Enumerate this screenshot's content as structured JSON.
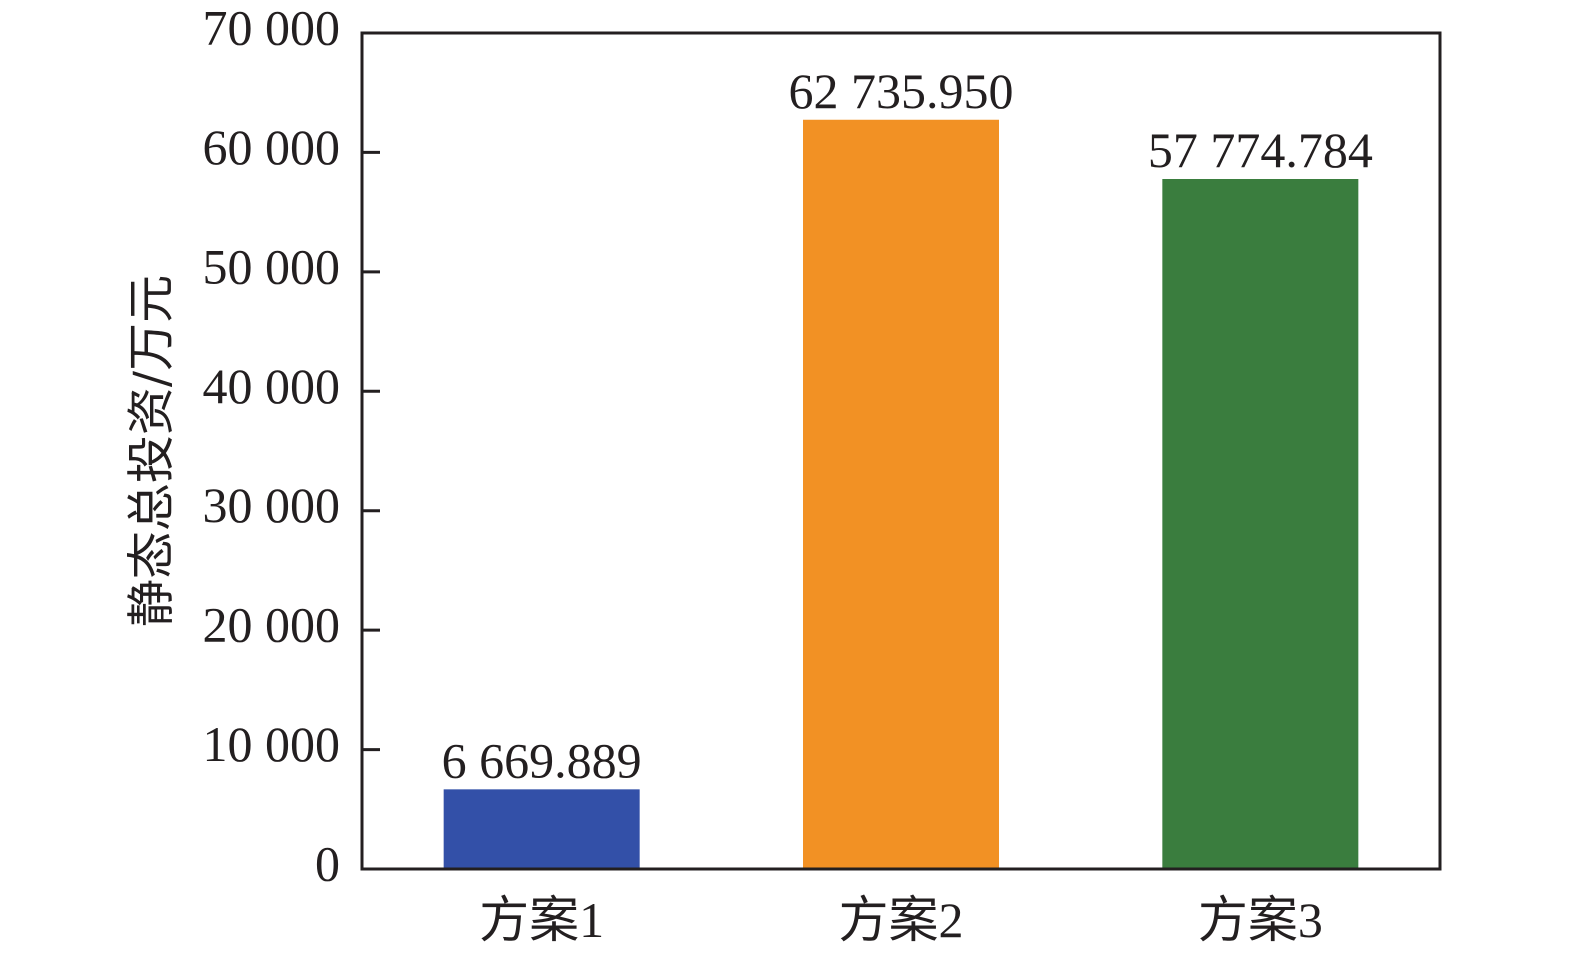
{
  "chart_data": {
    "type": "bar",
    "categories": [
      "方案1",
      "方案2",
      "方案3"
    ],
    "values": [
      6669.889,
      62735.95,
      57774.784
    ],
    "value_labels": [
      "6 669.889",
      "62 735.950",
      "57 774.784"
    ],
    "colors": [
      "#3350a8",
      "#f29124",
      "#3a7d3e"
    ],
    "ylabel": "静态总投资/万元",
    "ylim": [
      0,
      70000
    ],
    "yticks": [
      0,
      10000,
      20000,
      30000,
      40000,
      50000,
      60000,
      70000
    ],
    "ytick_labels": [
      "0",
      "10 000",
      "20 000",
      "30 000",
      "40 000",
      "50 000",
      "60 000",
      "70 000"
    ],
    "grid": false
  }
}
